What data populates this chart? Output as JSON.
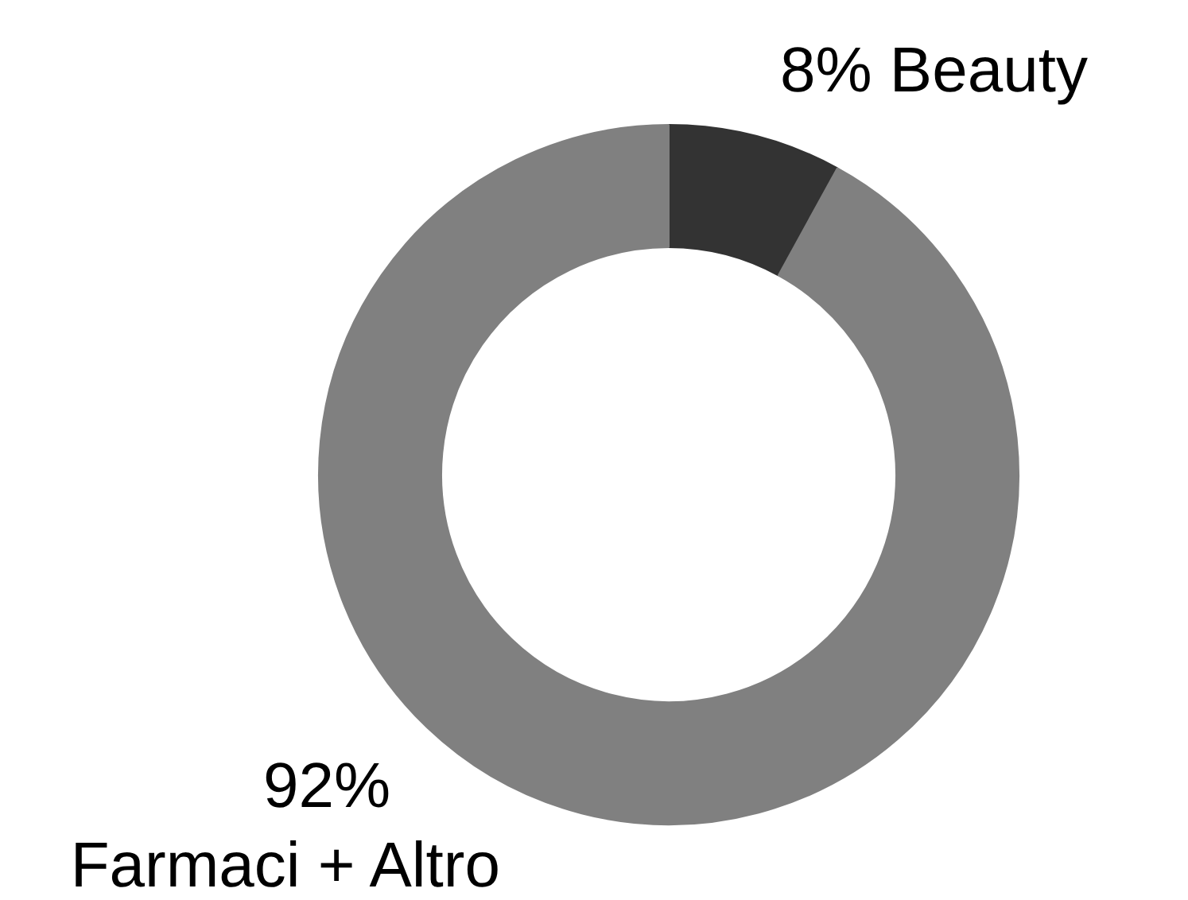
{
  "chart_data": {
    "type": "donut",
    "categories": [
      "Beauty",
      "Farmaci + Altro"
    ],
    "values": [
      8,
      92
    ],
    "colors": [
      "#333333",
      "#808080"
    ],
    "value_labels": [
      "8%",
      "92%"
    ]
  }
}
